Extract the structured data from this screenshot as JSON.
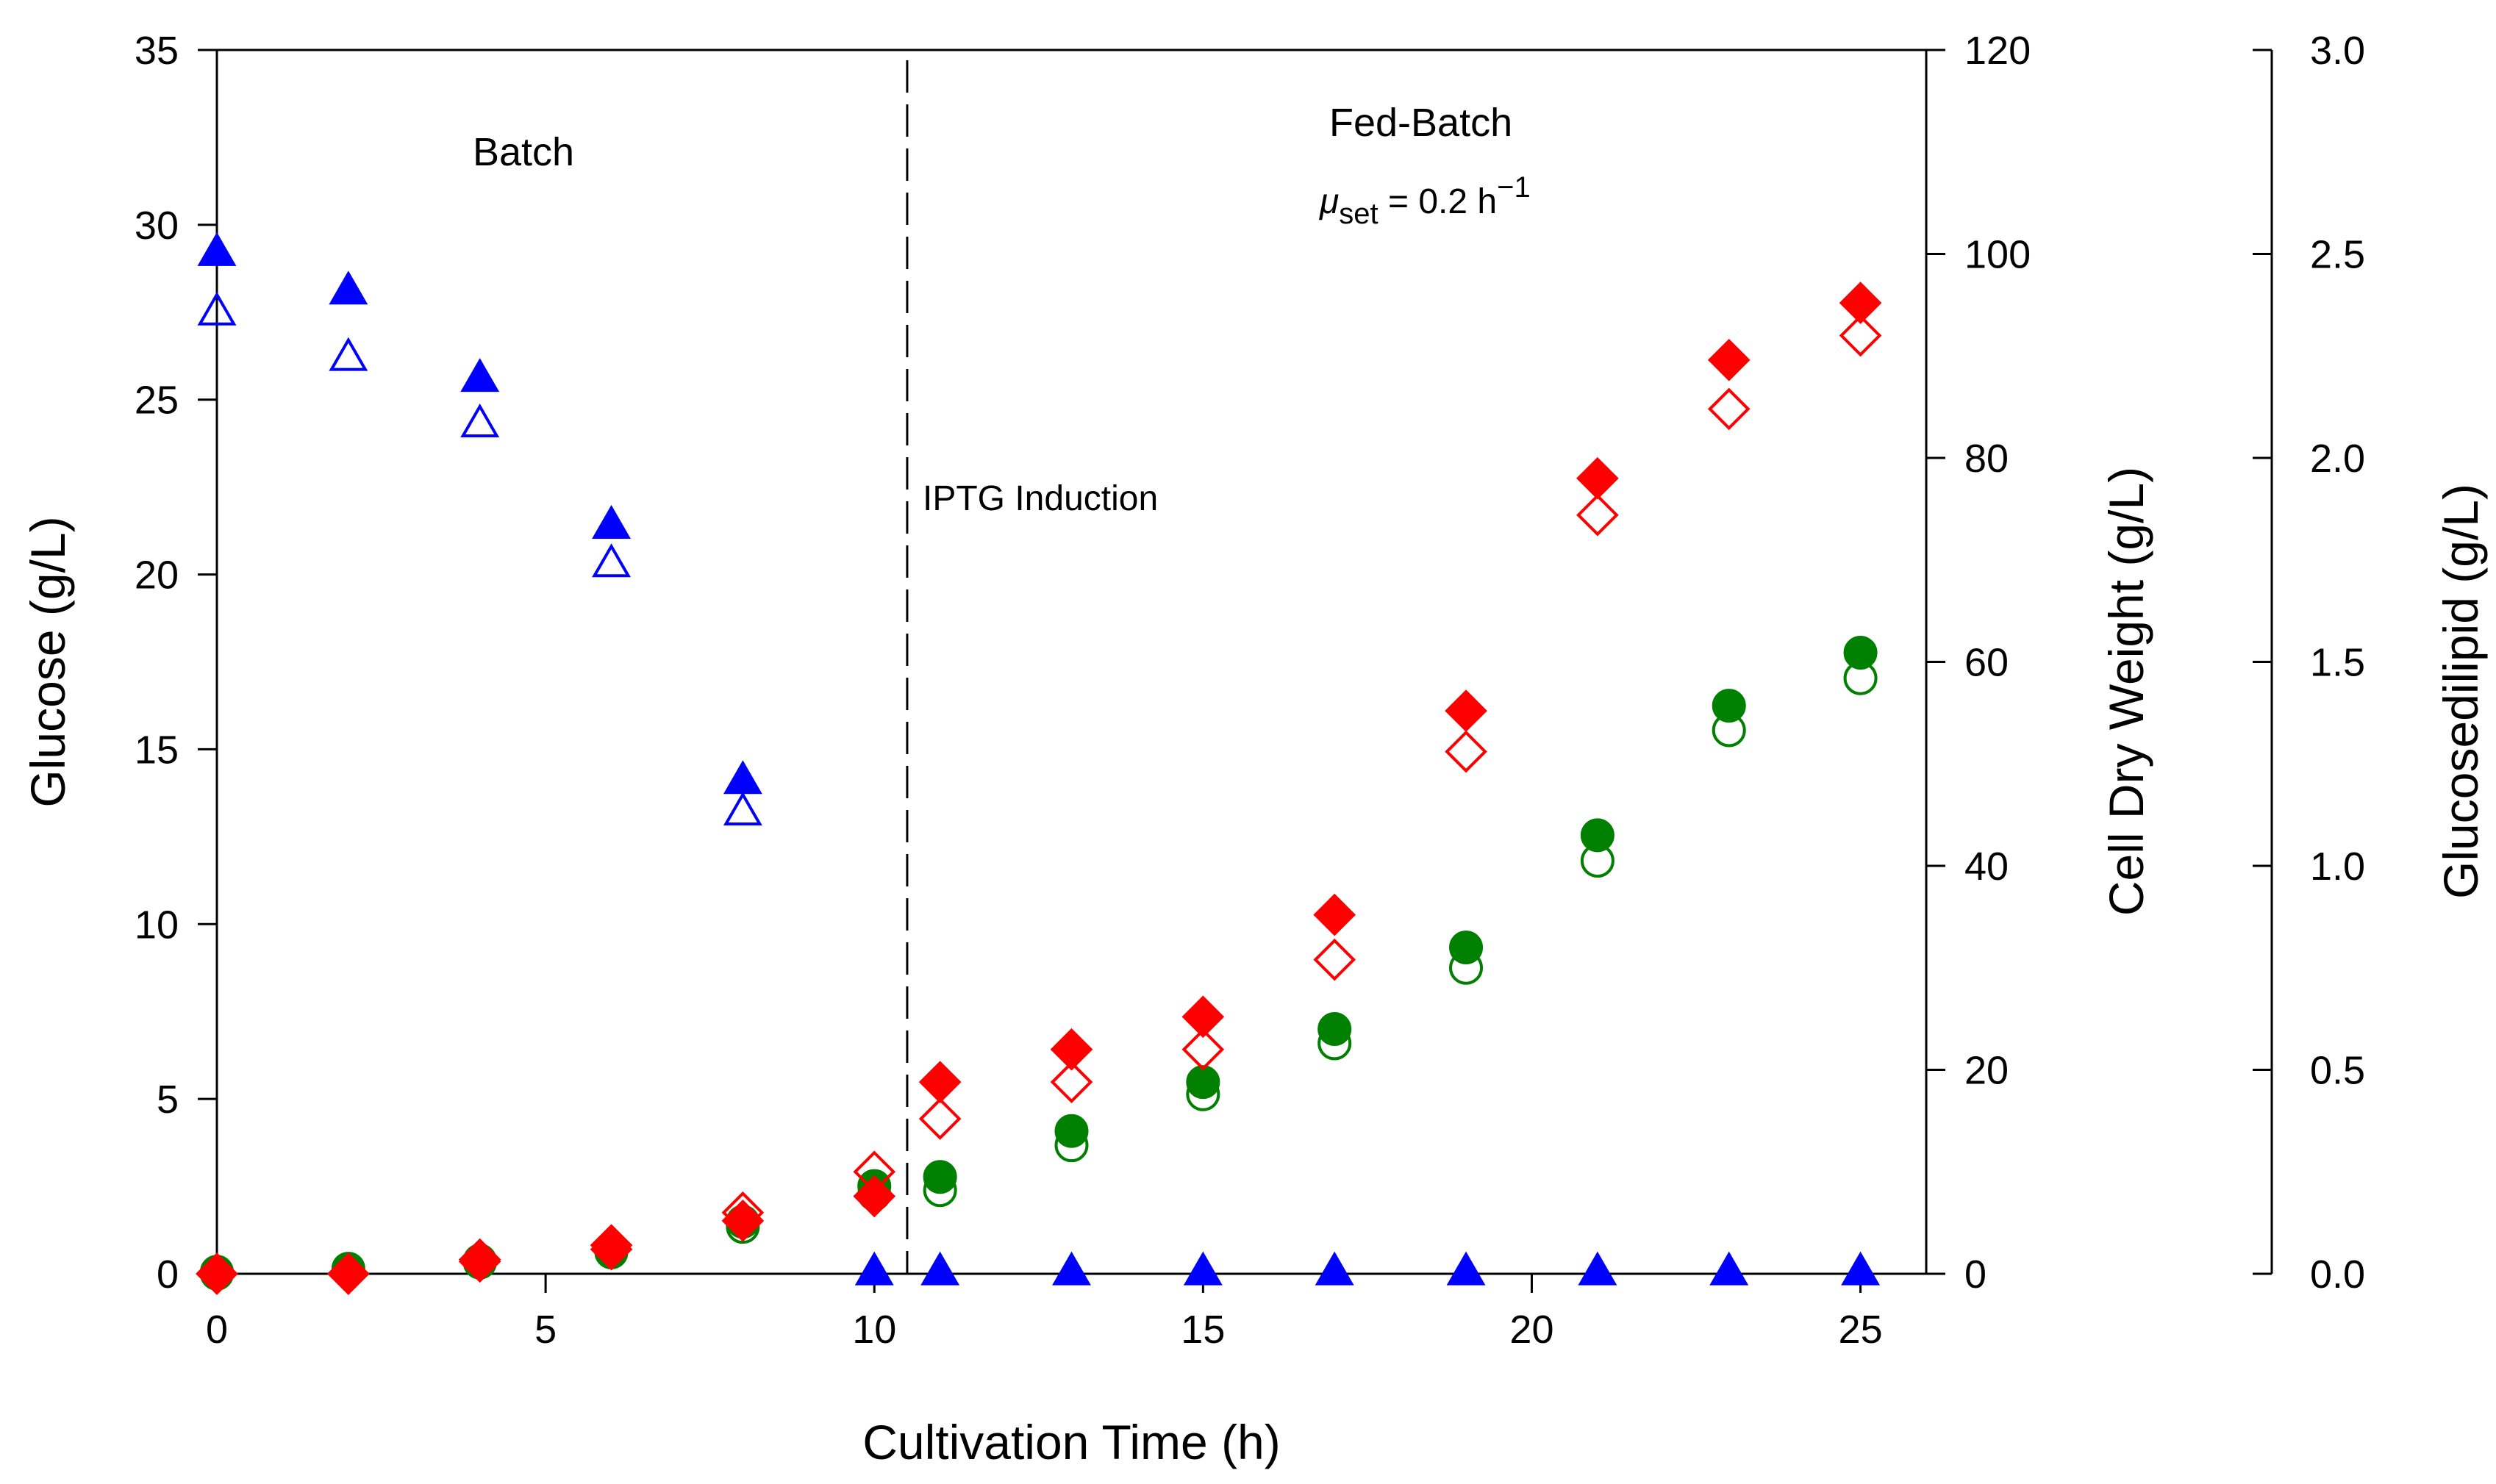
{
  "chart_data": {
    "type": "scatter",
    "xlabel": "Cultivation Time (h)",
    "xlim": [
      0,
      26
    ],
    "xticks": [
      0,
      5,
      10,
      15,
      20,
      25
    ],
    "axes": {
      "glucose": {
        "label": "Glucose (g/L)",
        "lim": [
          0,
          35
        ],
        "ticks": [
          0,
          5,
          10,
          15,
          20,
          25,
          30,
          35
        ],
        "side": "left"
      },
      "cdw": {
        "label": "Cell Dry Weight (g/L)",
        "lim": [
          0,
          120
        ],
        "ticks": [
          0,
          20,
          40,
          60,
          80,
          100,
          120
        ],
        "side": "right"
      },
      "glucosedilipid": {
        "label": "Glucosedilipid (g/L)",
        "lim": [
          0,
          3.0
        ],
        "ticks": [
          "0.0",
          "0.5",
          "1.0",
          "1.5",
          "2.0",
          "2.5",
          "3.0"
        ],
        "side": "right-outer"
      }
    },
    "annotations": {
      "batch": "Batch",
      "fed_batch": "Fed-Batch",
      "mu_symbol": "μ",
      "mu_sub": "set",
      "mu_value": " = 0.2 h",
      "mu_sup": "−1",
      "induction": "IPTG Induction",
      "induction_time": 10.5
    },
    "series": [
      {
        "axis": "glucose",
        "marker": "triangle",
        "filled": true,
        "color": "#0000ff",
        "x": [
          0,
          2,
          4,
          6,
          8,
          10,
          11,
          13,
          15,
          17,
          19,
          21,
          23,
          25
        ],
        "y": [
          29.2,
          28.1,
          25.6,
          21.4,
          14.1,
          0.05,
          0.05,
          0.05,
          0.05,
          0.05,
          0.05,
          0.05,
          0.05,
          0.05
        ]
      },
      {
        "axis": "glucose",
        "marker": "triangle",
        "filled": false,
        "color": "#0000ff",
        "x": [
          0,
          2,
          4,
          6,
          8
        ],
        "y": [
          27.5,
          26.2,
          24.3,
          20.3,
          13.2
        ]
      },
      {
        "axis": "cdw",
        "marker": "circle",
        "filled": true,
        "color": "#008000",
        "x": [
          0,
          2,
          4,
          6,
          8,
          10,
          11,
          13,
          15,
          17,
          19,
          21,
          23,
          25
        ],
        "y": [
          0.2,
          0.5,
          1.3,
          2.3,
          5.1,
          8.6,
          9.5,
          14.0,
          18.8,
          24.0,
          32.0,
          43.0,
          55.7,
          60.9
        ]
      },
      {
        "axis": "cdw",
        "marker": "circle",
        "filled": false,
        "color": "#008000",
        "x": [
          0,
          2,
          4,
          6,
          8,
          10,
          11,
          13,
          15,
          17,
          19,
          21,
          23,
          25
        ],
        "y": [
          0.0,
          0.3,
          1.1,
          2.1,
          4.6,
          7.8,
          8.2,
          12.6,
          17.6,
          22.6,
          30.0,
          40.5,
          53.3,
          58.4
        ]
      },
      {
        "axis": "glucosedilipid",
        "marker": "diamond",
        "filled": true,
        "color": "#ff0000",
        "x": [
          0,
          2,
          4,
          6,
          8,
          10,
          11,
          13,
          15,
          17,
          19,
          21,
          23,
          25
        ],
        "y": [
          0.0,
          0.0,
          0.035,
          0.07,
          0.13,
          0.19,
          0.47,
          0.55,
          0.63,
          0.88,
          1.38,
          1.95,
          2.24,
          2.38
        ]
      },
      {
        "axis": "glucosedilipid",
        "marker": "diamond",
        "filled": false,
        "color": "#ff0000",
        "x": [
          0,
          2,
          4,
          6,
          8,
          10,
          11,
          13,
          15,
          17,
          19,
          21,
          23,
          25
        ],
        "y": [
          0.0,
          0.0,
          0.03,
          0.06,
          0.15,
          0.25,
          0.38,
          0.47,
          0.55,
          0.77,
          1.28,
          1.86,
          2.12,
          2.3
        ]
      }
    ]
  }
}
